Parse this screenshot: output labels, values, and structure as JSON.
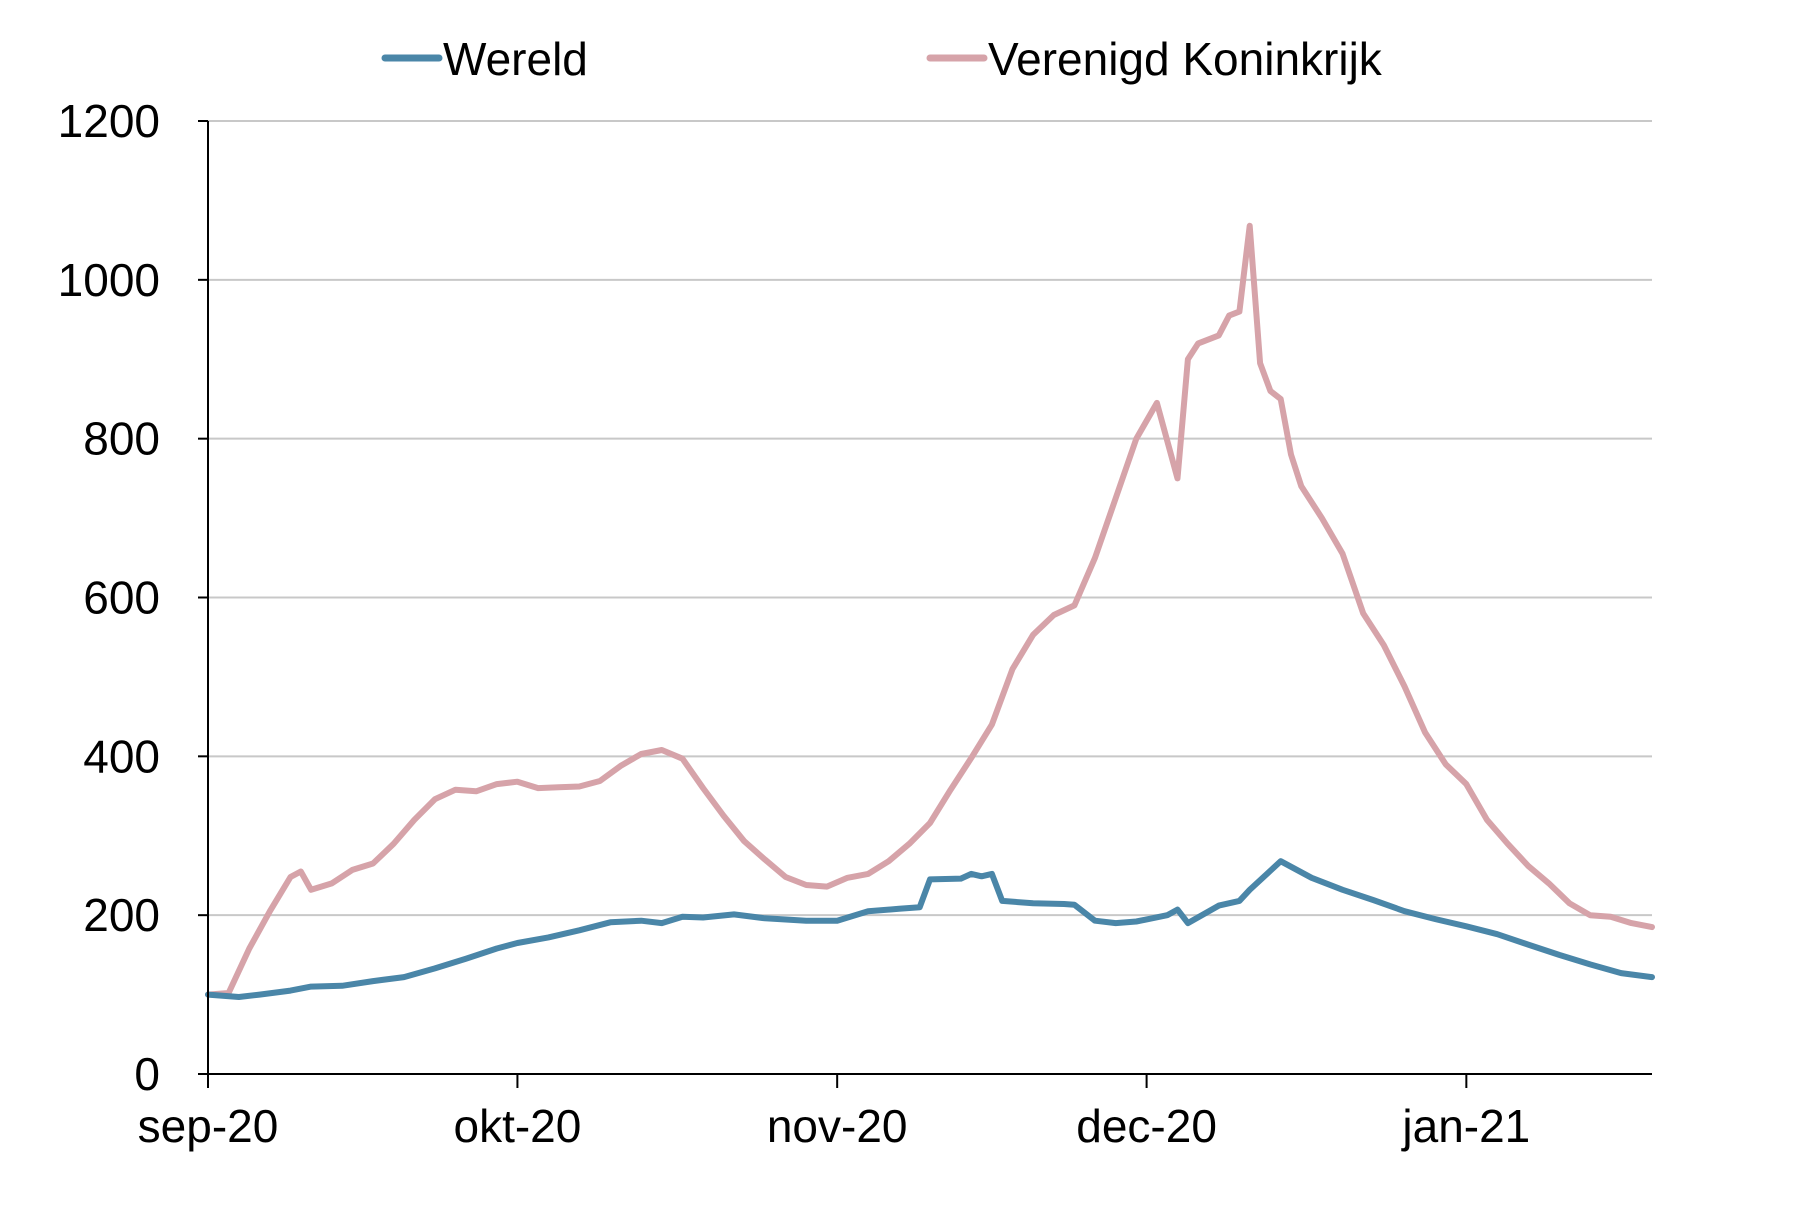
{
  "chart_data": {
    "type": "line",
    "title": "",
    "xlabel": "",
    "ylabel": "",
    "ylim": [
      0,
      1200
    ],
    "y_ticks": [
      0,
      200,
      400,
      600,
      800,
      1000,
      1200
    ],
    "x_ticks": [
      {
        "date": "2020-09-01",
        "label": "sep-20"
      },
      {
        "date": "2020-10-01",
        "label": "okt-20"
      },
      {
        "date": "2020-11-01",
        "label": "nov-20"
      },
      {
        "date": "2020-12-01",
        "label": "dec-20"
      },
      {
        "date": "2021-01-01",
        "label": "jan-21"
      }
    ],
    "xlim": [
      "2020-09-01",
      "2021-01-19"
    ],
    "grid": "horizontal",
    "legend_position": "top",
    "series": [
      {
        "name": "Wereld",
        "color": "#4A86A8",
        "x": [
          "2020-09-01",
          "2020-09-04",
          "2020-09-06",
          "2020-09-09",
          "2020-09-11",
          "2020-09-14",
          "2020-09-17",
          "2020-09-20",
          "2020-09-23",
          "2020-09-26",
          "2020-09-29",
          "2020-10-01",
          "2020-10-04",
          "2020-10-07",
          "2020-10-10",
          "2020-10-13",
          "2020-10-15",
          "2020-10-17",
          "2020-10-19",
          "2020-10-22",
          "2020-10-25",
          "2020-10-29",
          "2020-11-01",
          "2020-11-04",
          "2020-11-07",
          "2020-11-09",
          "2020-11-10",
          "2020-11-13",
          "2020-11-14",
          "2020-11-15",
          "2020-11-16",
          "2020-11-17",
          "2020-11-20",
          "2020-11-23",
          "2020-11-24",
          "2020-11-26",
          "2020-11-28",
          "2020-11-30",
          "2020-12-03",
          "2020-12-04",
          "2020-12-05",
          "2020-12-08",
          "2020-12-10",
          "2020-12-11",
          "2020-12-14",
          "2020-12-17",
          "2020-12-20",
          "2020-12-23",
          "2020-12-26",
          "2020-12-29",
          "2021-01-01",
          "2021-01-04",
          "2021-01-07",
          "2021-01-10",
          "2021-01-13",
          "2021-01-16",
          "2021-01-19"
        ],
        "y": [
          100,
          97,
          100,
          105,
          110,
          111,
          117,
          122,
          133,
          145,
          158,
          165,
          172,
          181,
          191,
          193,
          190,
          198,
          197,
          201,
          196,
          193,
          193,
          205,
          208,
          210,
          245,
          246,
          252,
          249,
          252,
          218,
          215,
          214,
          213,
          193,
          190,
          192,
          200,
          207,
          190,
          212,
          218,
          232,
          268,
          247,
          232,
          219,
          205,
          195,
          186,
          176,
          163,
          150,
          138,
          127,
          122
        ]
      },
      {
        "name": "Verenigd Koninkrijk",
        "color": "#D6A3A9",
        "x": [
          "2020-09-01",
          "2020-09-03",
          "2020-09-05",
          "2020-09-07",
          "2020-09-09",
          "2020-09-10",
          "2020-09-11",
          "2020-09-13",
          "2020-09-15",
          "2020-09-17",
          "2020-09-19",
          "2020-09-21",
          "2020-09-23",
          "2020-09-25",
          "2020-09-27",
          "2020-09-29",
          "2020-10-01",
          "2020-10-03",
          "2020-10-05",
          "2020-10-07",
          "2020-10-09",
          "2020-10-11",
          "2020-10-13",
          "2020-10-15",
          "2020-10-17",
          "2020-10-19",
          "2020-10-21",
          "2020-10-23",
          "2020-10-25",
          "2020-10-27",
          "2020-10-29",
          "2020-10-31",
          "2020-11-02",
          "2020-11-04",
          "2020-11-06",
          "2020-11-08",
          "2020-11-10",
          "2020-11-12",
          "2020-11-14",
          "2020-11-16",
          "2020-11-18",
          "2020-11-20",
          "2020-11-22",
          "2020-11-24",
          "2020-11-26",
          "2020-11-28",
          "2020-11-30",
          "2020-12-02",
          "2020-12-04",
          "2020-12-05",
          "2020-12-06",
          "2020-12-08",
          "2020-12-09",
          "2020-12-10",
          "2020-12-11",
          "2020-12-12",
          "2020-12-13",
          "2020-12-14",
          "2020-12-15",
          "2020-12-16",
          "2020-12-18",
          "2020-12-20",
          "2020-12-22",
          "2020-12-24",
          "2020-12-26",
          "2020-12-28",
          "2020-12-30",
          "2021-01-01",
          "2021-01-03",
          "2021-01-05",
          "2021-01-07",
          "2021-01-09",
          "2021-01-11",
          "2021-01-13",
          "2021-01-15",
          "2021-01-17",
          "2021-01-19"
        ],
        "y": [
          100,
          102,
          158,
          205,
          248,
          255,
          232,
          240,
          257,
          265,
          290,
          320,
          346,
          358,
          356,
          365,
          368,
          360,
          361,
          362,
          369,
          388,
          403,
          408,
          397,
          360,
          325,
          293,
          270,
          248,
          238,
          236,
          247,
          252,
          268,
          290,
          316,
          358,
          398,
          440,
          510,
          553,
          578,
          590,
          650,
          725,
          800,
          845,
          750,
          900,
          920,
          930,
          955,
          960,
          1068,
          895,
          860,
          850,
          780,
          740,
          700,
          655,
          580,
          540,
          488,
          430,
          390,
          365,
          320,
          290,
          262,
          240,
          215,
          200,
          198,
          190,
          185
        ]
      }
    ]
  }
}
